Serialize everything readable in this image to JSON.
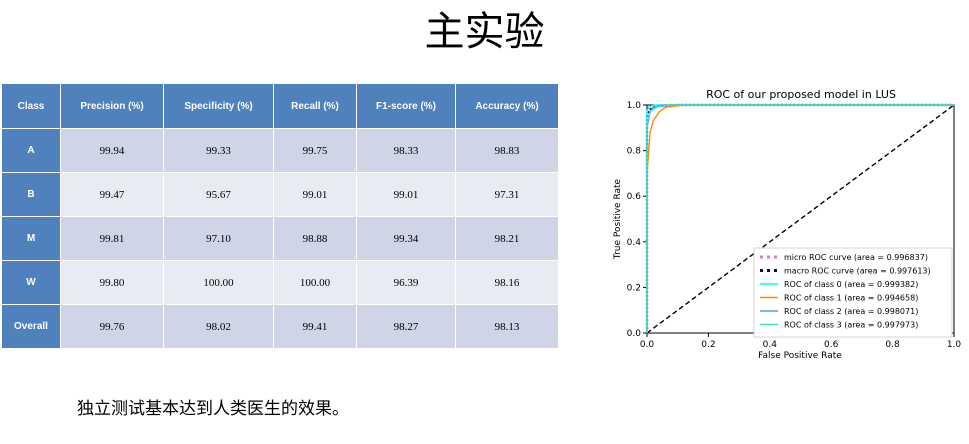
{
  "slide": {
    "title": "主实验",
    "footnote": "独立测试基本达到人类医生的效果。"
  },
  "table": {
    "headers": [
      "Class",
      "Precision (%)",
      "Specificity (%)",
      "Recall (%)",
      "F1-score (%)",
      "Accuracy (%)"
    ],
    "rows": [
      {
        "label": "A",
        "values": [
          "99.94",
          "99.33",
          "99.75",
          "98.33",
          "98.83"
        ]
      },
      {
        "label": "B",
        "values": [
          "99.47",
          "95.67",
          "99.01",
          "99.01",
          "97.31"
        ]
      },
      {
        "label": "M",
        "values": [
          "99.81",
          "97.10",
          "98.88",
          "99.34",
          "98.21"
        ]
      },
      {
        "label": "W",
        "values": [
          "99.80",
          "100.00",
          "100.00",
          "96.39",
          "98.16"
        ]
      },
      {
        "label": "Overall",
        "values": [
          "99.76",
          "98.02",
          "99.41",
          "98.27",
          "98.13"
        ]
      }
    ]
  },
  "chart_data": {
    "type": "line",
    "title": "ROC of our proposed model in LUS",
    "xlabel": "False Positive Rate",
    "ylabel": "True Positive Rate",
    "xlim": [
      0.0,
      1.0
    ],
    "ylim": [
      0.0,
      1.0
    ],
    "xticks": [
      "0.0",
      "0.2",
      "0.4",
      "0.6",
      "0.8",
      "1.0"
    ],
    "yticks": [
      "0.0",
      "0.2",
      "0.4",
      "0.6",
      "0.8",
      "1.0"
    ],
    "legend_position": "lower-right",
    "grid": false,
    "series": [
      {
        "name": "micro ROC curve (area = 0.996837)",
        "color": "#e377c2",
        "style": "dotted",
        "x": [
          0.0,
          0.0,
          0.01,
          0.02,
          0.05,
          0.1,
          1.0
        ],
        "y": [
          0.0,
          0.93,
          0.97,
          0.99,
          0.995,
          1.0,
          1.0
        ]
      },
      {
        "name": "macro ROC curve (area = 0.997613)",
        "color": "#0b0b5e",
        "style": "dotted",
        "x": [
          0.0,
          0.0,
          0.01,
          0.02,
          0.05,
          0.1,
          1.0
        ],
        "y": [
          0.0,
          0.95,
          0.98,
          0.99,
          0.997,
          1.0,
          1.0
        ]
      },
      {
        "name": "ROC of class 0 (area = 0.999382)",
        "color": "#00ffff",
        "style": "solid",
        "x": [
          0.0,
          0.0,
          0.005,
          0.01,
          0.03,
          1.0
        ],
        "y": [
          0.0,
          0.97,
          0.99,
          0.995,
          1.0,
          1.0
        ]
      },
      {
        "name": "ROC of class 1 (area = 0.994658)",
        "color": "#ff8c00",
        "style": "solid",
        "x": [
          0.0,
          0.0,
          0.01,
          0.02,
          0.04,
          0.06,
          0.12,
          1.0
        ],
        "y": [
          0.0,
          0.7,
          0.88,
          0.93,
          0.97,
          0.99,
          1.0,
          1.0
        ]
      },
      {
        "name": "ROC of class 2 (area = 0.998071)",
        "color": "#6495ed",
        "style": "solid",
        "x": [
          0.0,
          0.0,
          0.01,
          0.02,
          0.05,
          1.0
        ],
        "y": [
          0.0,
          0.9,
          0.97,
          0.99,
          1.0,
          1.0
        ]
      },
      {
        "name": "ROC of class 3 (area = 0.997973)",
        "color": "#40e0d0",
        "style": "solid",
        "x": [
          0.0,
          0.0,
          0.01,
          0.03,
          0.07,
          1.0
        ],
        "y": [
          0.0,
          0.92,
          0.97,
          0.99,
          1.0,
          1.0
        ]
      }
    ],
    "reference_line": {
      "x": [
        0.0,
        1.0
      ],
      "y": [
        0.0,
        1.0
      ],
      "color": "#000000",
      "style": "dashed"
    }
  }
}
